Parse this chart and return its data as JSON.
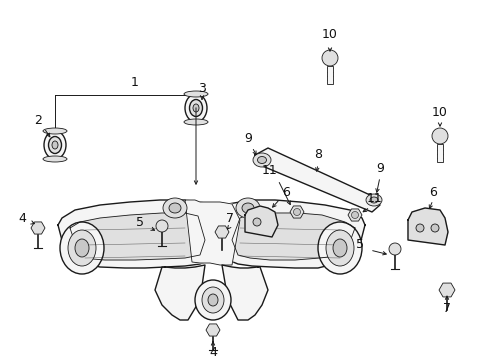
{
  "bg_color": "#ffffff",
  "fig_width": 4.89,
  "fig_height": 3.6,
  "dpi": 100,
  "line_color": "#1a1a1a",
  "fill_light": "#f5f5f5",
  "fill_mid": "#e0e0e0",
  "fill_dark": "#c8c8c8",
  "label_fs": 8,
  "label_color": "#111111"
}
